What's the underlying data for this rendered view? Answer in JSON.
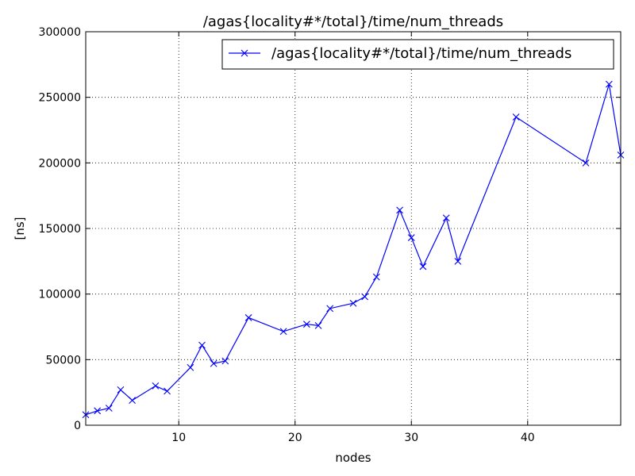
{
  "chart_data": {
    "type": "line",
    "title": "/agas{locality#*/total}/time/num_threads",
    "xlabel": "nodes",
    "ylabel": "[ns]",
    "xlim": [
      2,
      48
    ],
    "ylim": [
      0,
      300000
    ],
    "xticks": [
      10,
      20,
      30,
      40
    ],
    "xtick_labels": [
      "10",
      "20",
      "30",
      "40"
    ],
    "yticks": [
      0,
      50000,
      100000,
      150000,
      200000,
      250000,
      300000
    ],
    "ytick_labels": [
      "0",
      "50000",
      "100000",
      "150000",
      "200000",
      "250000",
      "300000"
    ],
    "grid": true,
    "legend_position": "top-right",
    "series": [
      {
        "name": "/agas{locality#*/total}/time/num_threads",
        "color": "#0000ff",
        "marker": "x",
        "x": [
          2,
          3,
          4,
          5,
          6,
          8,
          9,
          11,
          12,
          13,
          14,
          16,
          19,
          21,
          22,
          23,
          25,
          26,
          27,
          29,
          30,
          31,
          33,
          34,
          39,
          45,
          47,
          48
        ],
        "values": [
          8000,
          11000,
          13000,
          27000,
          19000,
          30000,
          26000,
          44000,
          61000,
          47000,
          49000,
          82000,
          71500,
          77000,
          76000,
          89000,
          93000,
          98000,
          113000,
          164000,
          143000,
          121000,
          158000,
          125000,
          235000,
          200000,
          260000,
          206000
        ]
      }
    ]
  }
}
